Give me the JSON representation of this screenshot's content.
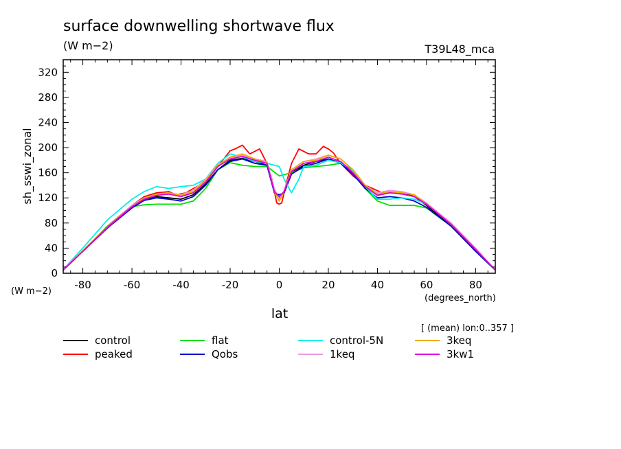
{
  "chart_data": {
    "type": "line",
    "title": "surface downwelling shortwave flux",
    "units_top": "(W m−2)",
    "model_label": "T39L48_mca",
    "ylabel": "sh_sswi_zonal",
    "yunits": "(W m−2)",
    "xlabel": "lat",
    "xunits": "(degrees_north)",
    "annotation": "[ (mean) lon:0..357 ]",
    "xlim": [
      -88,
      88
    ],
    "ylim": [
      0,
      340
    ],
    "xticks": [
      -80,
      -60,
      -40,
      -20,
      0,
      20,
      40,
      60,
      80
    ],
    "yticks": [
      0,
      40,
      80,
      120,
      160,
      200,
      240,
      280,
      320
    ],
    "grid": false,
    "legend_position": "bottom",
    "series": [
      {
        "name": "control",
        "color": "#000000",
        "x": [
          -88,
          -80,
          -70,
          -60,
          -55,
          -50,
          -45,
          -40,
          -35,
          -30,
          -25,
          -20,
          -15,
          -10,
          -5,
          -2,
          0,
          2,
          5,
          10,
          15,
          20,
          25,
          30,
          35,
          40,
          45,
          50,
          55,
          60,
          70,
          80,
          88
        ],
        "y": [
          5,
          35,
          72,
          105,
          118,
          122,
          120,
          118,
          125,
          142,
          165,
          180,
          183,
          178,
          172,
          130,
          120,
          128,
          160,
          172,
          178,
          182,
          176,
          160,
          138,
          125,
          130,
          128,
          122,
          108,
          75,
          35,
          5
        ]
      },
      {
        "name": "peaked",
        "color": "#ff0000",
        "x": [
          -88,
          -80,
          -70,
          -60,
          -55,
          -50,
          -45,
          -42,
          -38,
          -35,
          -30,
          -25,
          -20,
          -18,
          -15,
          -12,
          -8,
          -5,
          -3,
          -1,
          0,
          1,
          3,
          5,
          8,
          12,
          15,
          18,
          20,
          22,
          25,
          30,
          35,
          38,
          42,
          45,
          50,
          55,
          60,
          70,
          80,
          88
        ],
        "y": [
          5,
          35,
          75,
          108,
          122,
          128,
          130,
          125,
          128,
          135,
          145,
          170,
          195,
          198,
          204,
          190,
          198,
          175,
          150,
          112,
          110,
          112,
          145,
          175,
          198,
          190,
          190,
          202,
          198,
          192,
          175,
          155,
          140,
          135,
          128,
          130,
          128,
          125,
          110,
          78,
          38,
          5
        ]
      },
      {
        "name": "flat",
        "color": "#00e000",
        "x": [
          -88,
          -80,
          -70,
          -60,
          -55,
          -50,
          -45,
          -40,
          -35,
          -30,
          -25,
          -20,
          -15,
          -10,
          -5,
          0,
          5,
          10,
          15,
          20,
          25,
          30,
          35,
          40,
          45,
          50,
          55,
          60,
          70,
          80,
          88
        ],
        "y": [
          5,
          35,
          75,
          106,
          109,
          110,
          110,
          110,
          115,
          135,
          165,
          176,
          172,
          170,
          170,
          155,
          160,
          168,
          170,
          172,
          175,
          165,
          135,
          115,
          108,
          108,
          108,
          104,
          75,
          35,
          5
        ]
      },
      {
        "name": "Qobs",
        "color": "#0000cc",
        "x": [
          -88,
          -80,
          -70,
          -60,
          -55,
          -50,
          -45,
          -40,
          -35,
          -30,
          -25,
          -20,
          -15,
          -10,
          -5,
          -2,
          0,
          2,
          5,
          10,
          15,
          20,
          25,
          30,
          35,
          40,
          45,
          50,
          55,
          60,
          70,
          80,
          88
        ],
        "y": [
          5,
          35,
          72,
          104,
          116,
          120,
          118,
          115,
          122,
          140,
          165,
          178,
          182,
          175,
          172,
          128,
          125,
          128,
          158,
          170,
          175,
          182,
          175,
          158,
          135,
          120,
          122,
          120,
          115,
          105,
          75,
          35,
          5
        ]
      },
      {
        "name": "control-5N",
        "color": "#00eeee",
        "x": [
          -88,
          -80,
          -70,
          -60,
          -55,
          -50,
          -45,
          -40,
          -35,
          -30,
          -25,
          -20,
          -15,
          -10,
          -5,
          0,
          2,
          5,
          8,
          10,
          15,
          20,
          25,
          30,
          35,
          40,
          45,
          50,
          55,
          60,
          70,
          80,
          88
        ],
        "y": [
          6,
          40,
          85,
          118,
          130,
          138,
          135,
          138,
          140,
          150,
          175,
          190,
          185,
          178,
          175,
          170,
          150,
          128,
          150,
          170,
          172,
          180,
          176,
          162,
          138,
          118,
          118,
          120,
          118,
          110,
          78,
          38,
          6
        ]
      },
      {
        "name": "1keq",
        "color": "#ee99dd",
        "x": [
          -88,
          -80,
          -70,
          -60,
          -55,
          -50,
          -45,
          -40,
          -35,
          -30,
          -25,
          -20,
          -15,
          -10,
          -5,
          -2,
          0,
          2,
          5,
          10,
          15,
          20,
          25,
          30,
          35,
          40,
          45,
          50,
          55,
          60,
          70,
          80,
          88
        ],
        "y": [
          5,
          36,
          74,
          108,
          120,
          126,
          128,
          125,
          132,
          150,
          172,
          184,
          188,
          182,
          178,
          135,
          118,
          132,
          165,
          178,
          182,
          188,
          182,
          165,
          140,
          128,
          132,
          130,
          125,
          112,
          80,
          40,
          5
        ]
      },
      {
        "name": "3keq",
        "color": "#eeaa00",
        "x": [
          -88,
          -80,
          -70,
          -60,
          -55,
          -50,
          -45,
          -40,
          -35,
          -30,
          -25,
          -20,
          -15,
          -10,
          -5,
          -2,
          0,
          2,
          5,
          10,
          15,
          20,
          25,
          30,
          35,
          40,
          45,
          50,
          55,
          60,
          70,
          80,
          88
        ],
        "y": [
          5,
          36,
          74,
          106,
          120,
          126,
          128,
          124,
          130,
          148,
          172,
          185,
          190,
          182,
          176,
          130,
          115,
          130,
          165,
          178,
          180,
          188,
          182,
          165,
          140,
          126,
          130,
          128,
          125,
          110,
          78,
          38,
          5
        ]
      },
      {
        "name": "3kw1",
        "color": "#dd00dd",
        "x": [
          -88,
          -80,
          -70,
          -60,
          -55,
          -50,
          -45,
          -40,
          -35,
          -30,
          -25,
          -20,
          -15,
          -10,
          -5,
          -2,
          0,
          2,
          5,
          10,
          15,
          20,
          25,
          30,
          35,
          40,
          45,
          50,
          55,
          60,
          70,
          80,
          88
        ],
        "y": [
          5,
          35,
          73,
          106,
          118,
          124,
          126,
          122,
          128,
          145,
          170,
          182,
          186,
          180,
          175,
          130,
          122,
          130,
          162,
          175,
          178,
          185,
          178,
          160,
          138,
          124,
          128,
          126,
          122,
          110,
          78,
          38,
          5
        ]
      }
    ]
  }
}
